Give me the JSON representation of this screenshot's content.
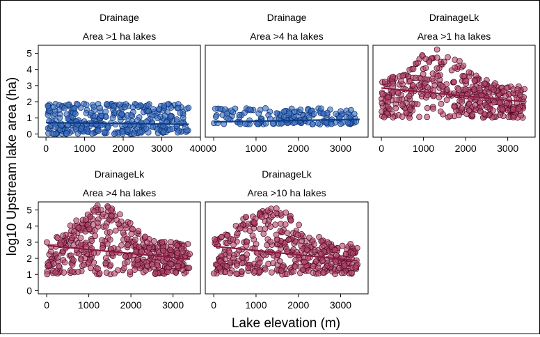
{
  "figure": {
    "xlabel": "Lake elevation (m)",
    "ylabel": "log10 Upstream lake area (ha)",
    "colors": {
      "Drainage": {
        "fill": "#3a6fc2",
        "stroke": "#0b2f6e",
        "line": "#0d3c8a"
      },
      "DrainageLk": {
        "fill": "#b5476c",
        "stroke": "#4a0a22",
        "line": "#8b1a42"
      }
    }
  },
  "chart_data": [
    {
      "type": "scatter",
      "strip_top": "Drainage",
      "strip_bottom": "Area >1 ha lakes",
      "group": "Drainage",
      "xlim": [
        -200,
        4000
      ],
      "ylim": [
        -0.2,
        5.5
      ],
      "xticks": [
        0,
        1000,
        2000,
        3000,
        4000
      ],
      "yticks": [
        0,
        1,
        2,
        3,
        4,
        5
      ],
      "show_y_ticks": true,
      "show_x_ticks": true,
      "n_points": 340,
      "x_range": [
        0,
        3700
      ],
      "y_range": [
        0,
        1.9
      ],
      "trend": {
        "x0": 0,
        "y0": 0.7,
        "x1": 3700,
        "y1": 0.6
      }
    },
    {
      "type": "scatter",
      "strip_top": "Drainage",
      "strip_bottom": "Area >4 ha lakes",
      "group": "Drainage",
      "xlim": [
        -200,
        3650
      ],
      "ylim": [
        -0.2,
        5.5
      ],
      "xticks": [
        0,
        1000,
        2000,
        3000
      ],
      "yticks": [
        0,
        1,
        2,
        3,
        4,
        5
      ],
      "show_y_ticks": false,
      "show_x_ticks": true,
      "n_points": 170,
      "x_range": [
        0,
        3450
      ],
      "y_range": [
        0.6,
        1.6
      ],
      "trend": {
        "x0": 0,
        "y0": 0.75,
        "x1": 3450,
        "y1": 0.9
      }
    },
    {
      "type": "scatter",
      "strip_top": "DrainageLk",
      "strip_bottom": "Area >1 ha lakes",
      "group": "DrainageLk",
      "xlim": [
        -200,
        3650
      ],
      "ylim": [
        -0.2,
        5.5
      ],
      "xticks": [
        0,
        1000,
        2000,
        3000
      ],
      "yticks": [
        0,
        1,
        2,
        3,
        4,
        5
      ],
      "show_y_ticks": false,
      "show_x_ticks": true,
      "n_points": 430,
      "x_range": [
        0,
        3400
      ],
      "y_range": [
        1.0,
        5.3
      ],
      "trend": {
        "x0": 0,
        "y0": 2.85,
        "x1": 3400,
        "y1": 2.0
      }
    },
    {
      "type": "scatter",
      "strip_top": "DrainageLk",
      "strip_bottom": "Area >4 ha lakes",
      "group": "DrainageLk",
      "xlim": [
        -200,
        3650
      ],
      "ylim": [
        -0.2,
        5.5
      ],
      "xticks": [
        0,
        1000,
        2000,
        3000
      ],
      "yticks": [
        0,
        1,
        2,
        3,
        4,
        5
      ],
      "show_y_ticks": true,
      "show_x_ticks": true,
      "n_points": 430,
      "x_range": [
        0,
        3400
      ],
      "y_range": [
        1.0,
        5.3
      ],
      "trend": {
        "x0": 0,
        "y0": 2.8,
        "x1": 3400,
        "y1": 1.95
      }
    },
    {
      "type": "scatter",
      "strip_top": "DrainageLk",
      "strip_bottom": "Area >10 ha lakes",
      "group": "DrainageLk",
      "xlim": [
        -200,
        3650
      ],
      "ylim": [
        -0.2,
        5.5
      ],
      "xticks": [
        0,
        1000,
        2000,
        3000
      ],
      "yticks": [
        0,
        1,
        2,
        3,
        4,
        5
      ],
      "show_y_ticks": false,
      "show_x_ticks": true,
      "n_points": 430,
      "x_range": [
        0,
        3400
      ],
      "y_range": [
        1.0,
        5.3
      ],
      "trend": {
        "x0": 0,
        "y0": 2.75,
        "x1": 3400,
        "y1": 1.85
      }
    }
  ]
}
